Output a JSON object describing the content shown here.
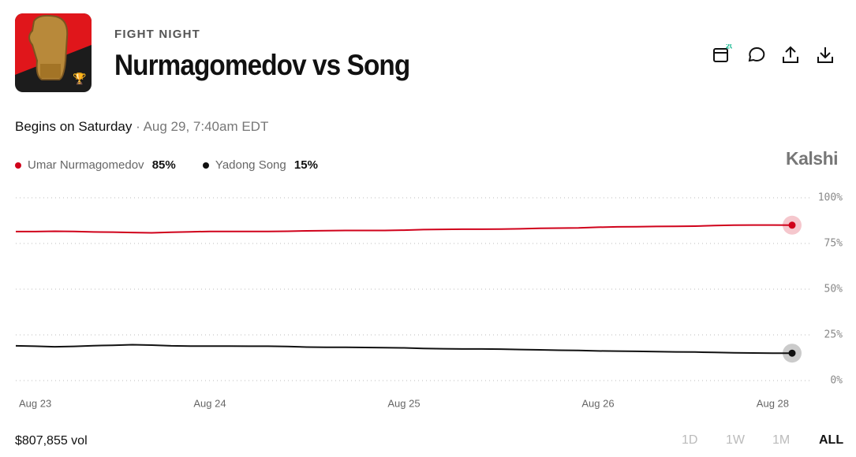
{
  "header": {
    "category": "FIGHT NIGHT",
    "title": "Nurmagomedov vs Song",
    "badge": "20"
  },
  "schedule": {
    "begins": "Begins on Saturday",
    "date": "· Aug 29, 7:40am EDT"
  },
  "brand": "Kalshi",
  "chart_data": {
    "type": "line",
    "x": [
      null,
      "Aug 23",
      null,
      null,
      null,
      null,
      null,
      null,
      null,
      null,
      "Aug 24",
      null,
      null,
      null,
      null,
      null,
      null,
      null,
      null,
      null,
      "Aug 25",
      null,
      null,
      null,
      null,
      null,
      null,
      null,
      null,
      null,
      "Aug 26",
      null,
      null,
      null,
      null,
      null,
      null,
      null,
      null,
      "Aug 28",
      null
    ],
    "series": [
      {
        "name": "Umar Nurmagomedov",
        "color": "#d0021b",
        "values": [
          81.5,
          81.5,
          81.7,
          81.6,
          81.3,
          81.2,
          81.0,
          80.8,
          81.1,
          81.4,
          81.6,
          81.6,
          81.6,
          81.6,
          81.7,
          81.9,
          82.0,
          82.1,
          82.1,
          82.1,
          82.3,
          82.6,
          82.7,
          82.8,
          82.8,
          82.9,
          83.0,
          83.3,
          83.4,
          83.5,
          83.9,
          84.1,
          84.2,
          84.3,
          84.4,
          84.5,
          84.8,
          85.0,
          85.1,
          85.1,
          85
        ],
        "value_labels": [
          null,
          null,
          null,
          null,
          null,
          null,
          null,
          null,
          null,
          null,
          null,
          null,
          null,
          null,
          null,
          null,
          null,
          null,
          null,
          null,
          null,
          null,
          null,
          null,
          null,
          null,
          null,
          null,
          null,
          null,
          null,
          null,
          null,
          null,
          null,
          null,
          null,
          null,
          null,
          null,
          "85%"
        ]
      },
      {
        "name": "Yadong Song",
        "color": "#111111",
        "values": [
          19,
          18.8,
          18.5,
          18.7,
          19.1,
          19.3,
          19.6,
          19.4,
          19,
          18.9,
          18.9,
          18.9,
          18.8,
          18.8,
          18.6,
          18.3,
          18.2,
          18.2,
          18.1,
          18.0,
          17.9,
          17.6,
          17.4,
          17.3,
          17.3,
          17.2,
          17.0,
          16.8,
          16.6,
          16.5,
          16.2,
          16.1,
          16.0,
          15.8,
          15.7,
          15.6,
          15.4,
          15.2,
          15.1,
          15.0,
          15
        ],
        "value_labels": [
          null,
          null,
          null,
          null,
          null,
          null,
          null,
          null,
          null,
          null,
          null,
          null,
          null,
          null,
          null,
          null,
          null,
          null,
          null,
          null,
          null,
          null,
          null,
          null,
          null,
          null,
          null,
          null,
          null,
          null,
          null,
          null,
          null,
          null,
          null,
          null,
          null,
          null,
          null,
          null,
          "15%"
        ]
      }
    ],
    "ylim": [
      0,
      100
    ],
    "yticks": [
      {
        "value": 0,
        "label": "0%"
      },
      {
        "value": 25,
        "label": "25%"
      },
      {
        "value": 50,
        "label": "50%"
      },
      {
        "value": 75,
        "label": "75%"
      },
      {
        "value": 100,
        "label": "100%"
      }
    ],
    "grid": true
  },
  "footer": {
    "volume": "$807,855 vol",
    "ranges": [
      "1D",
      "1W",
      "1M",
      "ALL"
    ]
  }
}
